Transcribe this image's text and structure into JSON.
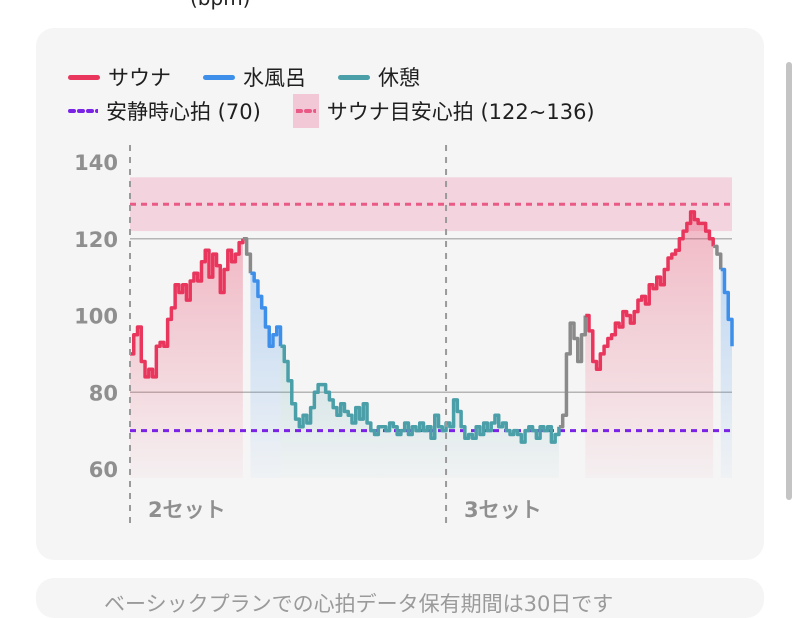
{
  "header_fragment": "(bpm)",
  "legend": {
    "sauna": "サウナ",
    "cold": "水風呂",
    "rest": "休憩",
    "resting_hr": "安静時心拍 (70)",
    "target_band": "サウナ目安心拍 (122~136)"
  },
  "colors": {
    "sauna": "#e8365d",
    "cold": "#3d8fea",
    "rest": "#4a9fa8",
    "transition": "#8a8a8a",
    "resting": "#7a22e6",
    "target": "#ea5a86",
    "target_band": "#f2c8d6"
  },
  "footer_note": "ベーシックプランでの心拍データ保有期間は30日です",
  "chart_data": {
    "type": "line",
    "y_ticks": [
      "60",
      "80",
      "100",
      "120",
      "140"
    ],
    "ylim": [
      55,
      142
    ],
    "x_domain": [
      0,
      160
    ],
    "grid_lines": [
      80,
      120
    ],
    "resting_hr": 70,
    "target_range": [
      122,
      136
    ],
    "target_line": 129,
    "set_labels": [
      "2セット",
      "3セット"
    ],
    "set_starts": [
      0,
      84
    ],
    "series": [
      {
        "name": "サウナ",
        "phase": "sauna",
        "points": [
          [
            0,
            90
          ],
          [
            1,
            95
          ],
          [
            2,
            97
          ],
          [
            3,
            88
          ],
          [
            4,
            84
          ],
          [
            5,
            86
          ],
          [
            6,
            84
          ],
          [
            7,
            92
          ],
          [
            8,
            93
          ],
          [
            9,
            92
          ],
          [
            10,
            99
          ],
          [
            11,
            102
          ],
          [
            12,
            108
          ],
          [
            13,
            106
          ],
          [
            14,
            108
          ],
          [
            15,
            104
          ],
          [
            16,
            109
          ],
          [
            17,
            111
          ],
          [
            18,
            109
          ],
          [
            19,
            114
          ],
          [
            20,
            117
          ],
          [
            21,
            110
          ],
          [
            22,
            116
          ],
          [
            23,
            113
          ],
          [
            24,
            106
          ],
          [
            25,
            112
          ],
          [
            26,
            117
          ],
          [
            27,
            114
          ],
          [
            28,
            116
          ],
          [
            29,
            119
          ],
          [
            30,
            120
          ]
        ]
      },
      {
        "name": "",
        "phase": "transition",
        "points": [
          [
            30,
            120
          ],
          [
            31,
            116
          ],
          [
            32,
            111
          ]
        ]
      },
      {
        "name": "水風呂",
        "phase": "cold",
        "points": [
          [
            32,
            111
          ],
          [
            33,
            109
          ],
          [
            34,
            105
          ],
          [
            35,
            102
          ],
          [
            36,
            97
          ],
          [
            37,
            92
          ],
          [
            38,
            95
          ],
          [
            39,
            97
          ],
          [
            40,
            92
          ]
        ]
      },
      {
        "name": "休憩",
        "phase": "rest",
        "points": [
          [
            40,
            92
          ],
          [
            41,
            88
          ],
          [
            42,
            83
          ],
          [
            43,
            77
          ],
          [
            44,
            73
          ],
          [
            45,
            71
          ],
          [
            46,
            74
          ],
          [
            47,
            72
          ],
          [
            48,
            76
          ],
          [
            49,
            80
          ],
          [
            50,
            82
          ],
          [
            51,
            82
          ],
          [
            52,
            80
          ],
          [
            53,
            78
          ],
          [
            54,
            76
          ],
          [
            55,
            74
          ],
          [
            56,
            77
          ],
          [
            57,
            75
          ],
          [
            58,
            74
          ],
          [
            59,
            72
          ],
          [
            60,
            76
          ],
          [
            61,
            73
          ],
          [
            62,
            77
          ],
          [
            63,
            72
          ],
          [
            64,
            70
          ],
          [
            65,
            69
          ],
          [
            66,
            71
          ],
          [
            67,
            71
          ],
          [
            68,
            70
          ],
          [
            69,
            72
          ],
          [
            70,
            71
          ],
          [
            71,
            69
          ],
          [
            72,
            70
          ],
          [
            73,
            72
          ],
          [
            74,
            69
          ],
          [
            75,
            71
          ],
          [
            76,
            70
          ],
          [
            77,
            72
          ],
          [
            78,
            70
          ],
          [
            79,
            71
          ],
          [
            80,
            68
          ],
          [
            81,
            74
          ],
          [
            82,
            71
          ],
          [
            83,
            70
          ],
          [
            84,
            72
          ],
          [
            85,
            71
          ],
          [
            86,
            78
          ],
          [
            87,
            75
          ],
          [
            88,
            71
          ],
          [
            89,
            68
          ],
          [
            90,
            69
          ],
          [
            91,
            68
          ],
          [
            92,
            71
          ],
          [
            93,
            69
          ],
          [
            94,
            72
          ],
          [
            95,
            70
          ],
          [
            96,
            72
          ],
          [
            97,
            74
          ],
          [
            98,
            71
          ],
          [
            99,
            72
          ],
          [
            100,
            70
          ],
          [
            101,
            69
          ],
          [
            102,
            70
          ],
          [
            103,
            69
          ],
          [
            104,
            67
          ],
          [
            105,
            70
          ],
          [
            106,
            71
          ],
          [
            107,
            70
          ],
          [
            108,
            68
          ],
          [
            109,
            71
          ],
          [
            110,
            70
          ],
          [
            111,
            71
          ],
          [
            112,
            67
          ],
          [
            113,
            69
          ],
          [
            114,
            71
          ]
        ]
      },
      {
        "name": "",
        "phase": "transition",
        "points": [
          [
            114,
            71
          ],
          [
            115,
            74
          ],
          [
            116,
            90
          ],
          [
            117,
            98
          ],
          [
            118,
            94
          ],
          [
            119,
            88
          ],
          [
            120,
            95
          ],
          [
            121,
            100
          ]
        ]
      },
      {
        "name": "サウナ",
        "phase": "sauna",
        "points": [
          [
            121,
            100
          ],
          [
            122,
            96
          ],
          [
            123,
            88
          ],
          [
            124,
            86
          ],
          [
            125,
            90
          ],
          [
            126,
            92
          ],
          [
            127,
            94
          ],
          [
            128,
            95
          ],
          [
            129,
            98
          ],
          [
            130,
            97
          ],
          [
            131,
            101
          ],
          [
            132,
            100
          ],
          [
            133,
            98
          ],
          [
            134,
            101
          ],
          [
            135,
            104
          ],
          [
            136,
            105
          ],
          [
            137,
            103
          ],
          [
            138,
            108
          ],
          [
            139,
            107
          ],
          [
            140,
            110
          ],
          [
            141,
            108
          ],
          [
            142,
            112
          ],
          [
            143,
            115
          ],
          [
            144,
            116
          ],
          [
            145,
            117
          ],
          [
            146,
            120
          ],
          [
            147,
            122
          ],
          [
            148,
            124
          ],
          [
            149,
            127
          ],
          [
            150,
            125
          ],
          [
            151,
            124
          ],
          [
            152,
            124
          ],
          [
            153,
            122
          ],
          [
            154,
            120
          ],
          [
            155,
            118
          ]
        ]
      },
      {
        "name": "",
        "phase": "transition",
        "points": [
          [
            155,
            118
          ],
          [
            156,
            116
          ],
          [
            157,
            112
          ]
        ]
      },
      {
        "name": "水風呂",
        "phase": "cold",
        "points": [
          [
            157,
            112
          ],
          [
            158,
            106
          ],
          [
            159,
            99
          ],
          [
            160,
            92
          ]
        ]
      }
    ]
  }
}
